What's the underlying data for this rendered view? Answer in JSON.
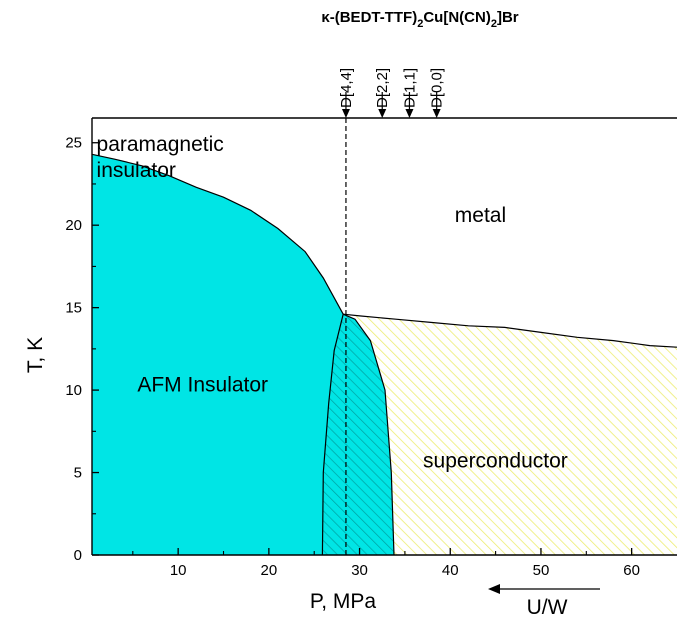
{
  "chart_data": {
    "type": "area",
    "title": {
      "prefix": "κ-(BEDT-TTF)",
      "sub1": "2",
      "mid": "Cu[N(CN)",
      "sub2": "2",
      "suffix": "]Br"
    },
    "xlabel": "P, MPa",
    "ylabel": "T, K",
    "secondary_xlabel": "U/W",
    "xlim": [
      0.5,
      65
    ],
    "ylim": [
      0,
      26.5
    ],
    "x_ticks": [
      10,
      20,
      30,
      40,
      50,
      60
    ],
    "x_tick_labels": [
      "10",
      "20",
      "30",
      "40",
      "50",
      "60"
    ],
    "y_ticks": [
      0,
      5,
      10,
      15,
      20,
      25
    ],
    "y_tick_labels": [
      "0",
      "5",
      "10",
      "15",
      "20",
      "25"
    ],
    "grid": false,
    "colors": {
      "afm": "#00e5e5",
      "superconductor_hatch": "#eded70",
      "line": "#000000"
    },
    "regions": {
      "afm_boundary": {
        "x": [
          0.5,
          3,
          6,
          9,
          12,
          15,
          18,
          21,
          24,
          26,
          28.2
        ],
        "y": [
          24.3,
          24.0,
          23.6,
          23.0,
          22.3,
          21.7,
          20.9,
          19.8,
          18.4,
          16.8,
          14.6
        ]
      },
      "metal_boundary": {
        "x": [
          28.2,
          30,
          34,
          38,
          42,
          46,
          50,
          54,
          58,
          62,
          65
        ],
        "y": [
          14.6,
          14.5,
          14.3,
          14.1,
          13.9,
          13.8,
          13.5,
          13.2,
          13.0,
          12.7,
          12.6
        ]
      },
      "coexistence_left_boundary": {
        "x": [
          25.9,
          26.0,
          26.6,
          27.2,
          28.2
        ],
        "y": [
          0,
          5.0,
          9.2,
          12.4,
          14.6
        ]
      },
      "coexistence_right_boundary": {
        "x": [
          28.2,
          29.5,
          31.2,
          32.8,
          33.5,
          33.8
        ],
        "y": [
          14.6,
          14.3,
          13.0,
          10.0,
          5.0,
          0
        ]
      }
    },
    "vertical_line": {
      "x": 28.5
    },
    "markers": [
      {
        "label": "D[4,4]",
        "x": 28.5
      },
      {
        "label": "D[2,2]",
        "x": 32.5
      },
      {
        "label": "D[1,1]",
        "x": 35.5
      },
      {
        "label": "D[0,0]",
        "x": 38.5
      }
    ],
    "annotations": [
      {
        "id": "paramagnetic",
        "lines": [
          "paramagnetic",
          "insulator"
        ],
        "x": 1,
        "y": 24.5
      },
      {
        "id": "metal",
        "lines": [
          "metal"
        ],
        "x": 40.5,
        "y": 20.2
      },
      {
        "id": "afm",
        "lines": [
          "AFM Insulator"
        ],
        "x": 5.5,
        "y": 9.9
      },
      {
        "id": "superconductor",
        "lines": [
          "superconductor"
        ],
        "x": 37,
        "y": 5.3
      }
    ]
  }
}
